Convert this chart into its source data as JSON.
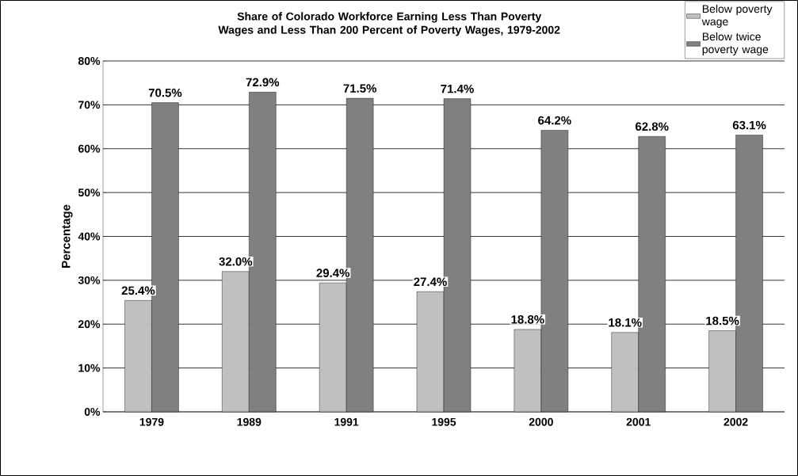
{
  "chart_data": {
    "type": "bar",
    "title": "Share of Colorado Workforce Earning Less Than Poverty Wages and Less Than 200 Percent of Poverty Wages, 1979-2002",
    "ylabel": "Percentage",
    "categories": [
      "1979",
      "1989",
      "1991",
      "1995",
      "2000",
      "2001",
      "2002"
    ],
    "series": [
      {
        "name": "Below poverty wage",
        "color": "#c0c0c0",
        "values": [
          25.4,
          32.0,
          29.4,
          27.4,
          18.8,
          18.1,
          18.5
        ],
        "value_labels": [
          "25.4%",
          "32.0%",
          "29.4%",
          "27.4%",
          "18.8%",
          "18.1%",
          "18.5%"
        ]
      },
      {
        "name": "Below twice poverty wage",
        "color": "#808080",
        "values": [
          70.5,
          72.9,
          71.5,
          71.4,
          64.2,
          62.8,
          63.1
        ],
        "value_labels": [
          "70.5%",
          "72.9%",
          "71.5%",
          "71.4%",
          "64.2%",
          "62.8%",
          "63.1%"
        ]
      }
    ],
    "ylim": [
      0,
      80
    ],
    "yticks": [
      {
        "value": 0,
        "label": "0%"
      },
      {
        "value": 10,
        "label": "10%"
      },
      {
        "value": 20,
        "label": "20%"
      },
      {
        "value": 30,
        "label": "30%"
      },
      {
        "value": 40,
        "label": "40%"
      },
      {
        "value": 50,
        "label": "50%"
      },
      {
        "value": 60,
        "label": "60%"
      },
      {
        "value": 70,
        "label": "70%"
      },
      {
        "value": 80,
        "label": "80%"
      }
    ],
    "grid": "y",
    "legend": "top right"
  }
}
